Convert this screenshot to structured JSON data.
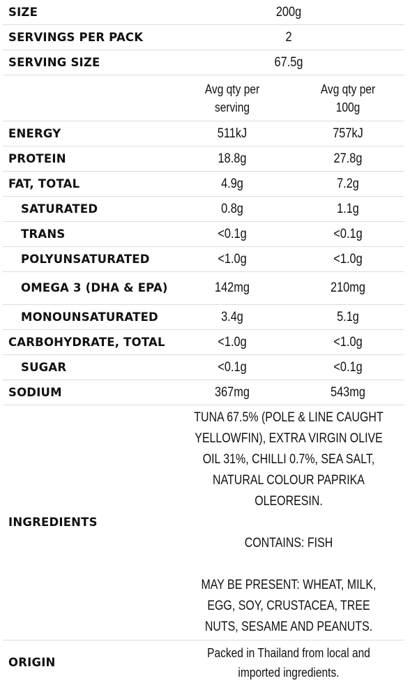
{
  "summary": [
    {
      "label": "SIZE",
      "value": "200g"
    },
    {
      "label": "SERVINGS PER PACK",
      "value": "2"
    },
    {
      "label": "SERVING SIZE",
      "value": "67.5g"
    }
  ],
  "columns": {
    "per_serving_line1": "Avg qty per",
    "per_serving_line2": "serving",
    "per_100g_line1": "Avg qty per",
    "per_100g_line2": "100g"
  },
  "nutrients": [
    {
      "label": "ENERGY",
      "serving": "511kJ",
      "per100": "757kJ",
      "indent": false
    },
    {
      "label": "PROTEIN",
      "serving": "18.8g",
      "per100": "27.8g",
      "indent": false
    },
    {
      "label": "FAT, TOTAL",
      "serving": "4.9g",
      "per100": "7.2g",
      "indent": false
    },
    {
      "label": "SATURATED",
      "serving": "0.8g",
      "per100": "1.1g",
      "indent": true
    },
    {
      "label": "TRANS",
      "serving": "<0.1g",
      "per100": "<0.1g",
      "indent": true
    },
    {
      "label": "POLYUNSATURATED",
      "serving": "<1.0g",
      "per100": "<1.0g",
      "indent": true
    },
    {
      "label": "OMEGA 3 (DHA & EPA)",
      "serving": "142mg",
      "per100": "210mg",
      "indent": true
    },
    {
      "label": "MONOUNSATURATED",
      "serving": "3.4g",
      "per100": "5.1g",
      "indent": true
    },
    {
      "label": "CARBOHYDRATE, TOTAL",
      "serving": "<1.0g",
      "per100": "<1.0g",
      "indent": false
    },
    {
      "label": "SUGAR",
      "serving": "<0.1g",
      "per100": "<0.1g",
      "indent": true
    },
    {
      "label": "SODIUM",
      "serving": "367mg",
      "per100": "543mg",
      "indent": false
    }
  ],
  "ingredients": {
    "label": "INGREDIENTS",
    "composition": "TUNA 67.5% (POLE & LINE CAUGHT YELLOWFIN), EXTRA VIRGIN OLIVE OIL 31%, CHILLI 0.7%, SEA SALT, NATURAL COLOUR PAPRIKA OLEORESIN.",
    "contains": "CONTAINS: FISH",
    "may_contain": "MAY BE PRESENT: WHEAT, MILK, EGG, SOY, CRUSTACEA, TREE NUTS, SESAME AND PEANUTS."
  },
  "origin": {
    "label": "ORIGIN",
    "text": "Packed in Thailand from local and imported ingredients."
  }
}
